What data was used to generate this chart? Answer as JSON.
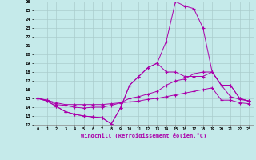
{
  "xlabel": "Windchill (Refroidissement éolien,°C)",
  "bg_color": "#c5eaea",
  "grid_color": "#aacccc",
  "line_color": "#aa00aa",
  "xlim": [
    -0.5,
    23.5
  ],
  "ylim": [
    12,
    26
  ],
  "xticks": [
    0,
    1,
    2,
    3,
    4,
    5,
    6,
    7,
    8,
    9,
    10,
    11,
    12,
    13,
    14,
    15,
    16,
    17,
    18,
    19,
    20,
    21,
    22,
    23
  ],
  "yticks": [
    12,
    13,
    14,
    15,
    16,
    17,
    18,
    19,
    20,
    21,
    22,
    23,
    24,
    25,
    26
  ],
  "series": [
    [
      15.0,
      14.7,
      14.1,
      13.5,
      13.2,
      13.0,
      12.9,
      12.8,
      12.1,
      null,
      null,
      null,
      null,
      null,
      null,
      26.0,
      25.5,
      25.2,
      23.0,
      null,
      null,
      null,
      null,
      null
    ],
    [
      15.0,
      14.7,
      14.1,
      13.5,
      13.2,
      13.0,
      12.9,
      12.8,
      12.1,
      13.9,
      16.5,
      17.5,
      18.5,
      19.0,
      18.0,
      18.0,
      17.5,
      17.5,
      17.5,
      18.0,
      16.5,
      16.5,
      15.0,
      14.7
    ],
    [
      15.0,
      14.8,
      14.3,
      14.2,
      14.0,
      13.9,
      14.0,
      14.0,
      14.2,
      14.5,
      15.0,
      15.2,
      15.5,
      15.8,
      16.5,
      17.0,
      17.2,
      17.8,
      18.0,
      18.0,
      16.5,
      16.5,
      15.0,
      14.7
    ],
    [
      15.0,
      14.8,
      14.5,
      14.3,
      14.3,
      14.3,
      14.3,
      14.3,
      14.4,
      14.5,
      14.6,
      14.7,
      14.9,
      15.0,
      15.2,
      15.4,
      15.6,
      15.8,
      16.0,
      16.2,
      14.8,
      14.8,
      14.5,
      14.4
    ]
  ],
  "series2": [
    [
      15.0,
      14.7,
      14.1,
      13.5,
      13.2,
      13.0,
      12.9,
      12.8,
      12.1,
      13.9,
      16.5,
      17.5,
      18.5,
      19.0,
      21.5,
      26.0,
      25.5,
      25.2,
      23.0,
      null,
      null,
      null,
      null,
      null
    ],
    [
      15.0,
      14.7,
      14.1,
      13.5,
      13.2,
      13.0,
      12.9,
      12.8,
      12.1,
      13.9,
      16.5,
      17.5,
      18.5,
      19.0,
      18.0,
      18.0,
      17.5,
      17.5,
      17.5,
      18.0,
      16.5,
      16.5,
      15.0,
      14.7
    ],
    [
      15.0,
      14.8,
      14.3,
      14.2,
      14.0,
      13.9,
      14.0,
      14.0,
      14.2,
      14.5,
      15.0,
      15.2,
      15.5,
      15.8,
      16.5,
      17.0,
      17.2,
      17.8,
      18.0,
      18.0,
      16.5,
      16.5,
      15.0,
      14.7
    ],
    [
      15.0,
      14.8,
      14.5,
      14.3,
      14.3,
      14.3,
      14.3,
      14.3,
      14.4,
      14.5,
      14.6,
      14.7,
      14.9,
      15.0,
      15.2,
      15.4,
      15.6,
      15.8,
      16.0,
      16.2,
      14.8,
      14.8,
      14.5,
      14.4
    ]
  ],
  "line1_x": [
    0,
    1,
    2,
    3,
    4,
    5,
    6,
    7,
    8,
    9,
    10,
    11,
    12,
    13,
    14,
    15,
    16,
    17,
    18,
    19,
    20,
    21,
    22,
    23
  ],
  "line1_y": [
    15.0,
    14.7,
    14.1,
    13.5,
    13.2,
    13.0,
    12.9,
    12.8,
    12.1,
    13.9,
    16.5,
    17.5,
    18.5,
    19.0,
    21.5,
    26.0,
    25.5,
    25.2,
    23.0,
    18.0,
    16.5,
    15.2,
    14.9,
    14.7
  ],
  "line2_y": [
    15.0,
    14.7,
    14.1,
    13.5,
    13.2,
    13.0,
    12.9,
    12.8,
    12.1,
    13.9,
    16.5,
    17.5,
    18.5,
    19.0,
    18.0,
    18.0,
    17.5,
    17.5,
    17.5,
    18.0,
    16.5,
    16.5,
    15.0,
    14.7
  ],
  "line3_y": [
    15.0,
    14.8,
    14.3,
    14.2,
    14.0,
    13.9,
    14.0,
    14.0,
    14.2,
    14.5,
    15.0,
    15.2,
    15.5,
    15.8,
    16.5,
    17.0,
    17.2,
    17.8,
    18.0,
    18.0,
    16.5,
    16.5,
    15.0,
    14.7
  ],
  "line4_y": [
    15.0,
    14.8,
    14.5,
    14.3,
    14.3,
    14.3,
    14.3,
    14.3,
    14.4,
    14.5,
    14.6,
    14.7,
    14.9,
    15.0,
    15.2,
    15.4,
    15.6,
    15.8,
    16.0,
    16.2,
    14.8,
    14.8,
    14.5,
    14.4
  ]
}
